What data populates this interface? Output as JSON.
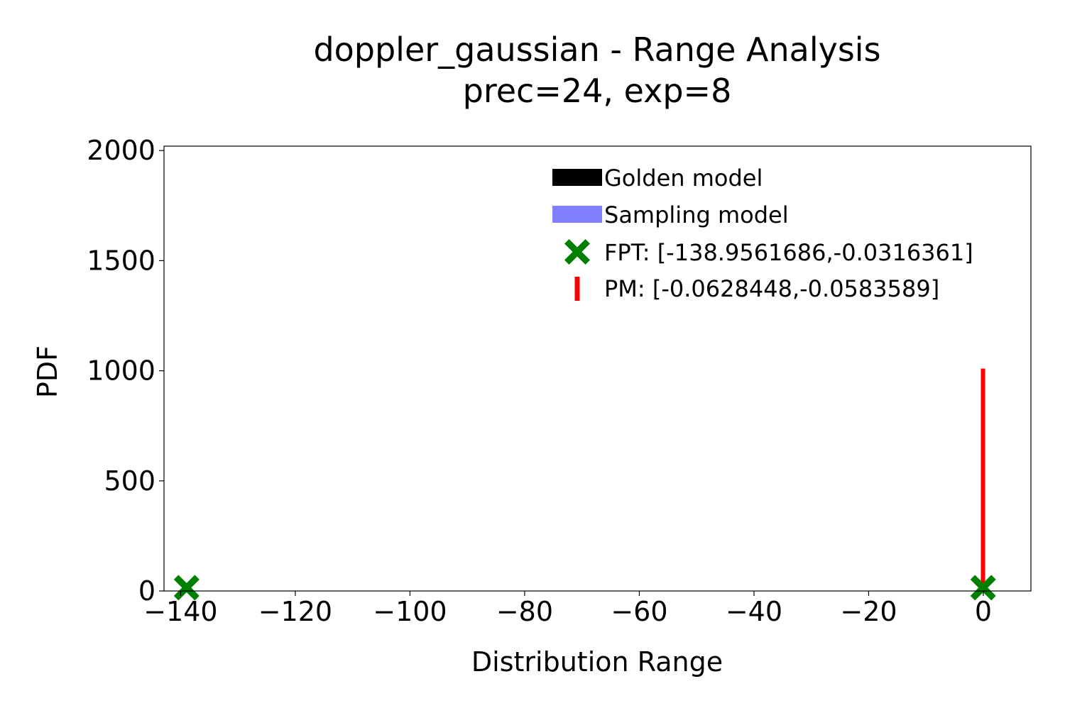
{
  "chart_data": {
    "type": "scatter",
    "title": "doppler_gaussian - Range Analysis",
    "subtitle": "prec=24, exp=8",
    "xlabel": "Distribution Range",
    "ylabel": "PDF",
    "xlim": [
      -142.9,
      8.3
    ],
    "ylim": [
      0,
      2020
    ],
    "xticks": [
      -140,
      -120,
      -100,
      -80,
      -60,
      -40,
      -20,
      0
    ],
    "xtick_labels": [
      "−140",
      "−120",
      "−100",
      "−80",
      "−60",
      "−40",
      "−20",
      "0"
    ],
    "yticks": [
      0,
      500,
      1000,
      1500,
      2000
    ],
    "ytick_labels": [
      "0",
      "500",
      "1000",
      "1500",
      "2000"
    ],
    "grid": false,
    "legend_position": "top-right",
    "series": [
      {
        "name": "Golden model",
        "kind": "histogram",
        "color": "#000000",
        "values": []
      },
      {
        "name": "Sampling model",
        "kind": "histogram",
        "color": "#8080ff",
        "values": []
      },
      {
        "name": "FPT: [-138.9561686,-0.0316361]",
        "kind": "marker",
        "marker": "X",
        "color": "#008000",
        "points": [
          [
            -138.9561686,
            15
          ],
          [
            -0.0316361,
            15
          ]
        ]
      },
      {
        "name": "PM: [-0.0628448,-0.0583589]",
        "kind": "vline",
        "color": "#ff0000",
        "x": [
          -0.0628448,
          -0.0583589
        ],
        "height": 1010
      }
    ]
  }
}
